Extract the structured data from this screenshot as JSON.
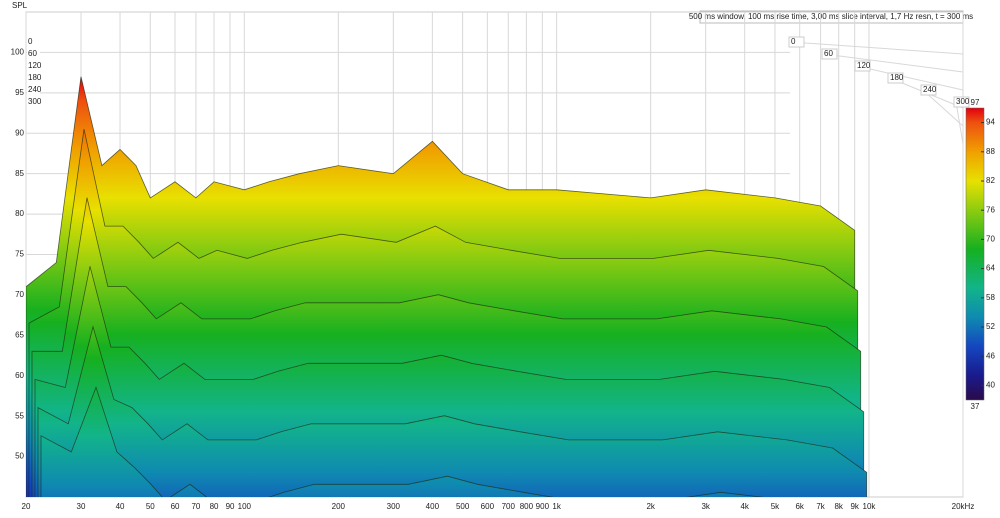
{
  "chart_data": {
    "type": "waterfall",
    "y_label": "SPL",
    "info": "500 ms window, 100 ms rise time, 3,00 ms slice interval, 1,7 Hz resn, t = 300 ms",
    "xscale": "log",
    "xlim": [
      20,
      20000
    ],
    "xticks": [
      20,
      30,
      40,
      50,
      60,
      70,
      80,
      90,
      100,
      200,
      300,
      400,
      500,
      600,
      700,
      800,
      900,
      {
        "value": 1000,
        "label": "1k"
      },
      {
        "value": 2000,
        "label": "2k"
      },
      {
        "value": 3000,
        "label": "3k"
      },
      {
        "value": 4000,
        "label": "4k"
      },
      {
        "value": 5000,
        "label": "5k"
      },
      {
        "value": 6000,
        "label": "6k"
      },
      {
        "value": 7000,
        "label": "7k"
      },
      {
        "value": 8000,
        "label": "8k"
      },
      {
        "value": 9000,
        "label": "9k"
      },
      {
        "value": 10000,
        "label": "10k"
      },
      {
        "value": 20000,
        "label": "20kHz"
      }
    ],
    "ylim": [
      45,
      105
    ],
    "yticks": [
      50,
      55,
      60,
      65,
      70,
      75,
      80,
      85,
      90,
      95,
      100
    ],
    "tlim": [
      0,
      300
    ],
    "tticks": [
      0,
      60,
      120,
      180,
      240,
      300
    ],
    "grid": true,
    "x": [
      20,
      25,
      30,
      35,
      40,
      45,
      50,
      60,
      70,
      80,
      100,
      120,
      150,
      200,
      300,
      400,
      500,
      700,
      1000,
      2000,
      3000,
      5000,
      7000,
      9000
    ],
    "series": [
      {
        "name": "0",
        "t": 0,
        "values": [
          71,
          74,
          97,
          86,
          88,
          86,
          82,
          84,
          82,
          84,
          83,
          84,
          85,
          86,
          85,
          89,
          85,
          83,
          83,
          82,
          83,
          82,
          81,
          78
        ]
      },
      {
        "name": "60",
        "t": 60,
        "values": [
          68,
          70,
          92,
          80,
          80,
          78,
          76,
          78,
          76,
          77,
          76,
          77,
          78,
          79,
          78,
          80,
          78,
          77,
          76,
          76,
          77,
          76,
          75,
          72
        ]
      },
      {
        "name": "120",
        "t": 120,
        "values": [
          66,
          66,
          85,
          74,
          74,
          72,
          70,
          72,
          70,
          70,
          70,
          71,
          72,
          72,
          72,
          73,
          72,
          71,
          70,
          70,
          71,
          70,
          69,
          66
        ]
      },
      {
        "name": "180",
        "t": 180,
        "values": [
          64,
          63,
          78,
          68,
          68,
          66,
          64,
          66,
          64,
          64,
          64,
          65,
          66,
          66,
          66,
          67,
          66,
          65,
          64,
          64,
          65,
          64,
          63,
          60
        ]
      },
      {
        "name": "240",
        "t": 240,
        "values": [
          62,
          60,
          72,
          63,
          62,
          60,
          58,
          60,
          58,
          58,
          58,
          59,
          60,
          60,
          60,
          61,
          60,
          59,
          58,
          58,
          59,
          58,
          57,
          54
        ]
      },
      {
        "name": "300",
        "t": 300,
        "values": [
          60,
          58,
          66,
          58,
          56,
          54,
          52,
          54,
          52,
          52,
          52,
          53,
          54,
          54,
          54,
          55,
          54,
          53,
          52,
          52,
          53,
          52,
          51,
          49
        ]
      }
    ],
    "colorbar": {
      "lim": [
        37,
        97
      ],
      "ticks": [
        94,
        88,
        82,
        76,
        70,
        64,
        58,
        52,
        46,
        40
      ],
      "stops": [
        {
          "value": 37,
          "color": "#2a0a4a"
        },
        {
          "value": 42,
          "color": "#1a1a8c"
        },
        {
          "value": 48,
          "color": "#1446c0"
        },
        {
          "value": 54,
          "color": "#0f8ab0"
        },
        {
          "value": 60,
          "color": "#12b48a"
        },
        {
          "value": 68,
          "color": "#16b020"
        },
        {
          "value": 76,
          "color": "#8ccc10"
        },
        {
          "value": 82,
          "color": "#e8e000"
        },
        {
          "value": 88,
          "color": "#f0a000"
        },
        {
          "value": 94,
          "color": "#ee5010"
        },
        {
          "value": 97,
          "color": "#e00010"
        }
      ]
    }
  }
}
